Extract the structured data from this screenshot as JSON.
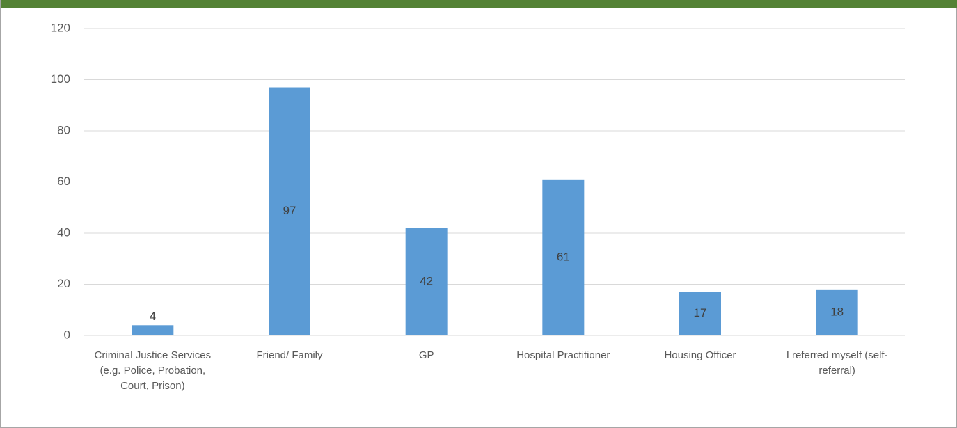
{
  "chart_data": {
    "type": "bar",
    "categories": [
      "Criminal Justice Services (e.g. Police, Probation, Court, Prison)",
      "Friend/ Family",
      "GP",
      "Hospital Practitioner",
      "Housing Officer",
      "I referred myself (self-referral)"
    ],
    "values": [
      4,
      97,
      42,
      61,
      17,
      18
    ],
    "color": "#5b9bd5",
    "ylim": [
      0,
      120
    ],
    "yticks": [
      0,
      20,
      40,
      60,
      80,
      100,
      120
    ],
    "grid": true
  }
}
